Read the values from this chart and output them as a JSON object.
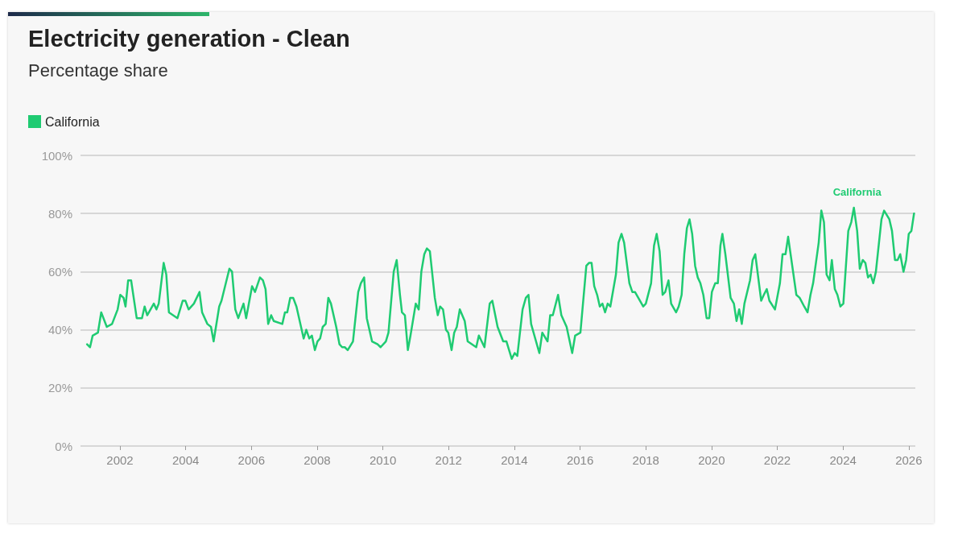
{
  "chart_data": {
    "type": "line",
    "title": "Electricity generation - Clean",
    "subtitle": "Percentage share",
    "xlim": [
      2000.8,
      2026.2
    ],
    "xticks": [
      2002,
      2004,
      2006,
      2008,
      2010,
      2012,
      2014,
      2016,
      2018,
      2020,
      2022,
      2024,
      2026
    ],
    "ylim": [
      0,
      100
    ],
    "yticks": [
      {
        "value": 0,
        "label": "0%"
      },
      {
        "value": 20,
        "label": "20%"
      },
      {
        "value": 40,
        "label": "40%"
      },
      {
        "value": 60,
        "label": "60%"
      },
      {
        "value": 80,
        "label": "80%"
      },
      {
        "value": 100,
        "label": "100%"
      }
    ],
    "grid": "y",
    "legend": "top left",
    "marker": "none",
    "line_style": "solid",
    "series": [
      {
        "name": "California",
        "color": "#1fcb72",
        "x": [
          2001.0,
          2001.09,
          2001.17,
          2001.33,
          2001.43,
          2001.6,
          2001.76,
          2001.93,
          2002.01,
          2002.11,
          2002.17,
          2002.25,
          2002.34,
          2002.51,
          2002.67,
          2002.75,
          2002.83,
          2003.03,
          2003.11,
          2003.18,
          2003.33,
          2003.41,
          2003.49,
          2003.75,
          2003.91,
          2003.99,
          2004.09,
          2004.25,
          2004.42,
          2004.5,
          2004.66,
          2004.77,
          2004.85,
          2005.02,
          2005.09,
          2005.33,
          2005.41,
          2005.51,
          2005.6,
          2005.76,
          2005.84,
          2006.02,
          2006.11,
          2006.26,
          2006.35,
          2006.43,
          2006.51,
          2006.6,
          2006.68,
          2006.94,
          2007.02,
          2007.09,
          2007.18,
          2007.27,
          2007.37,
          2007.59,
          2007.67,
          2007.76,
          2007.84,
          2007.93,
          2008.01,
          2008.09,
          2008.17,
          2008.26,
          2008.34,
          2008.42,
          2008.58,
          2008.68,
          2008.76,
          2008.84,
          2008.93,
          2009.09,
          2009.25,
          2009.33,
          2009.43,
          2009.51,
          2009.67,
          2009.84,
          2009.93,
          2010.09,
          2010.17,
          2010.33,
          2010.42,
          2010.52,
          2010.58,
          2010.67,
          2010.76,
          2010.84,
          2011.0,
          2011.09,
          2011.17,
          2011.26,
          2011.34,
          2011.43,
          2011.58,
          2011.67,
          2011.74,
          2011.83,
          2011.92,
          2011.99,
          2012.09,
          2012.17,
          2012.25,
          2012.34,
          2012.49,
          2012.58,
          2012.84,
          2012.92,
          2013.09,
          2013.25,
          2013.33,
          2013.49,
          2013.66,
          2013.76,
          2013.92,
          2014.01,
          2014.09,
          2014.25,
          2014.35,
          2014.43,
          2014.51,
          2014.76,
          2014.85,
          2015.01,
          2015.09,
          2015.17,
          2015.33,
          2015.43,
          2015.59,
          2015.76,
          2015.85,
          2016.01,
          2016.19,
          2016.27,
          2016.35,
          2016.43,
          2016.52,
          2016.6,
          2016.68,
          2016.76,
          2016.84,
          2016.92,
          2017.09,
          2017.17,
          2017.26,
          2017.34,
          2017.5,
          2017.59,
          2017.67,
          2017.92,
          2018.0,
          2018.16,
          2018.25,
          2018.33,
          2018.42,
          2018.51,
          2018.59,
          2018.69,
          2018.77,
          2018.92,
          2019.0,
          2019.09,
          2019.17,
          2019.25,
          2019.33,
          2019.41,
          2019.5,
          2019.58,
          2019.66,
          2019.75,
          2019.85,
          2019.93,
          2020.01,
          2020.11,
          2020.19,
          2020.27,
          2020.33,
          2020.42,
          2020.58,
          2020.68,
          2020.76,
          2020.84,
          2020.92,
          2021.0,
          2021.17,
          2021.25,
          2021.33,
          2021.51,
          2021.59,
          2021.68,
          2021.76,
          2021.93,
          2022.08,
          2022.16,
          2022.25,
          2022.33,
          2022.58,
          2022.68,
          2022.82,
          2022.92,
          2023.01,
          2023.09,
          2023.26,
          2023.34,
          2023.42,
          2023.5,
          2023.59,
          2023.66,
          2023.75,
          2023.83,
          2023.92,
          2024.01,
          2024.16,
          2024.25,
          2024.33,
          2024.43,
          2024.51,
          2024.6,
          2024.68,
          2024.76,
          2024.84,
          2024.92,
          2025.0,
          2025.17,
          2025.25,
          2025.41,
          2025.49,
          2025.58,
          2025.66,
          2025.74,
          2025.84,
          2025.92,
          2026.0,
          2026.08,
          2026.16
        ],
        "values": [
          35,
          34,
          38,
          39,
          46,
          41,
          42,
          47,
          52,
          51,
          48,
          57,
          57,
          44,
          44,
          48,
          45,
          49,
          47,
          49,
          63,
          59,
          46,
          44,
          50,
          50,
          47,
          49,
          53,
          46,
          42,
          41,
          36,
          48,
          50,
          61,
          60,
          47,
          44,
          49,
          44,
          55,
          53,
          58,
          57,
          54,
          42,
          45,
          43,
          42,
          46,
          46,
          51,
          51,
          48,
          37,
          40,
          37,
          38,
          33,
          36,
          37,
          41,
          42,
          51,
          49,
          41,
          35,
          34,
          34,
          33,
          36,
          53,
          56,
          58,
          44,
          36,
          35,
          34,
          36,
          39,
          60,
          64,
          52,
          46,
          45,
          33,
          38,
          49,
          47,
          60,
          66,
          68,
          67,
          51,
          45,
          48,
          47,
          40,
          39,
          33,
          39,
          41,
          47,
          43,
          36,
          34,
          38,
          34,
          49,
          50,
          41,
          36,
          36,
          30,
          32,
          31,
          47,
          51,
          52,
          42,
          32,
          39,
          36,
          45,
          45,
          52,
          45,
          41,
          32,
          38,
          39,
          62,
          63,
          63,
          55,
          52,
          48,
          49,
          46,
          49,
          48,
          59,
          70,
          73,
          70,
          56,
          53,
          53,
          48,
          49,
          56,
          69,
          73,
          67,
          52,
          53,
          57,
          49,
          46,
          48,
          52,
          66,
          75,
          78,
          73,
          62,
          58,
          56,
          52,
          44,
          44,
          53,
          56,
          56,
          69,
          73,
          66,
          51,
          49,
          43,
          47,
          42,
          49,
          57,
          64,
          66,
          50,
          52,
          54,
          50,
          47,
          56,
          66,
          66,
          72,
          52,
          51,
          48,
          46,
          52,
          56,
          70,
          81,
          77,
          59,
          57,
          64,
          54,
          52,
          48,
          49,
          74,
          77,
          82,
          74,
          61,
          64,
          63,
          58,
          59,
          56,
          60,
          78,
          81,
          78,
          74,
          64,
          64,
          66,
          60,
          64,
          73,
          74,
          80
        ]
      }
    ]
  }
}
